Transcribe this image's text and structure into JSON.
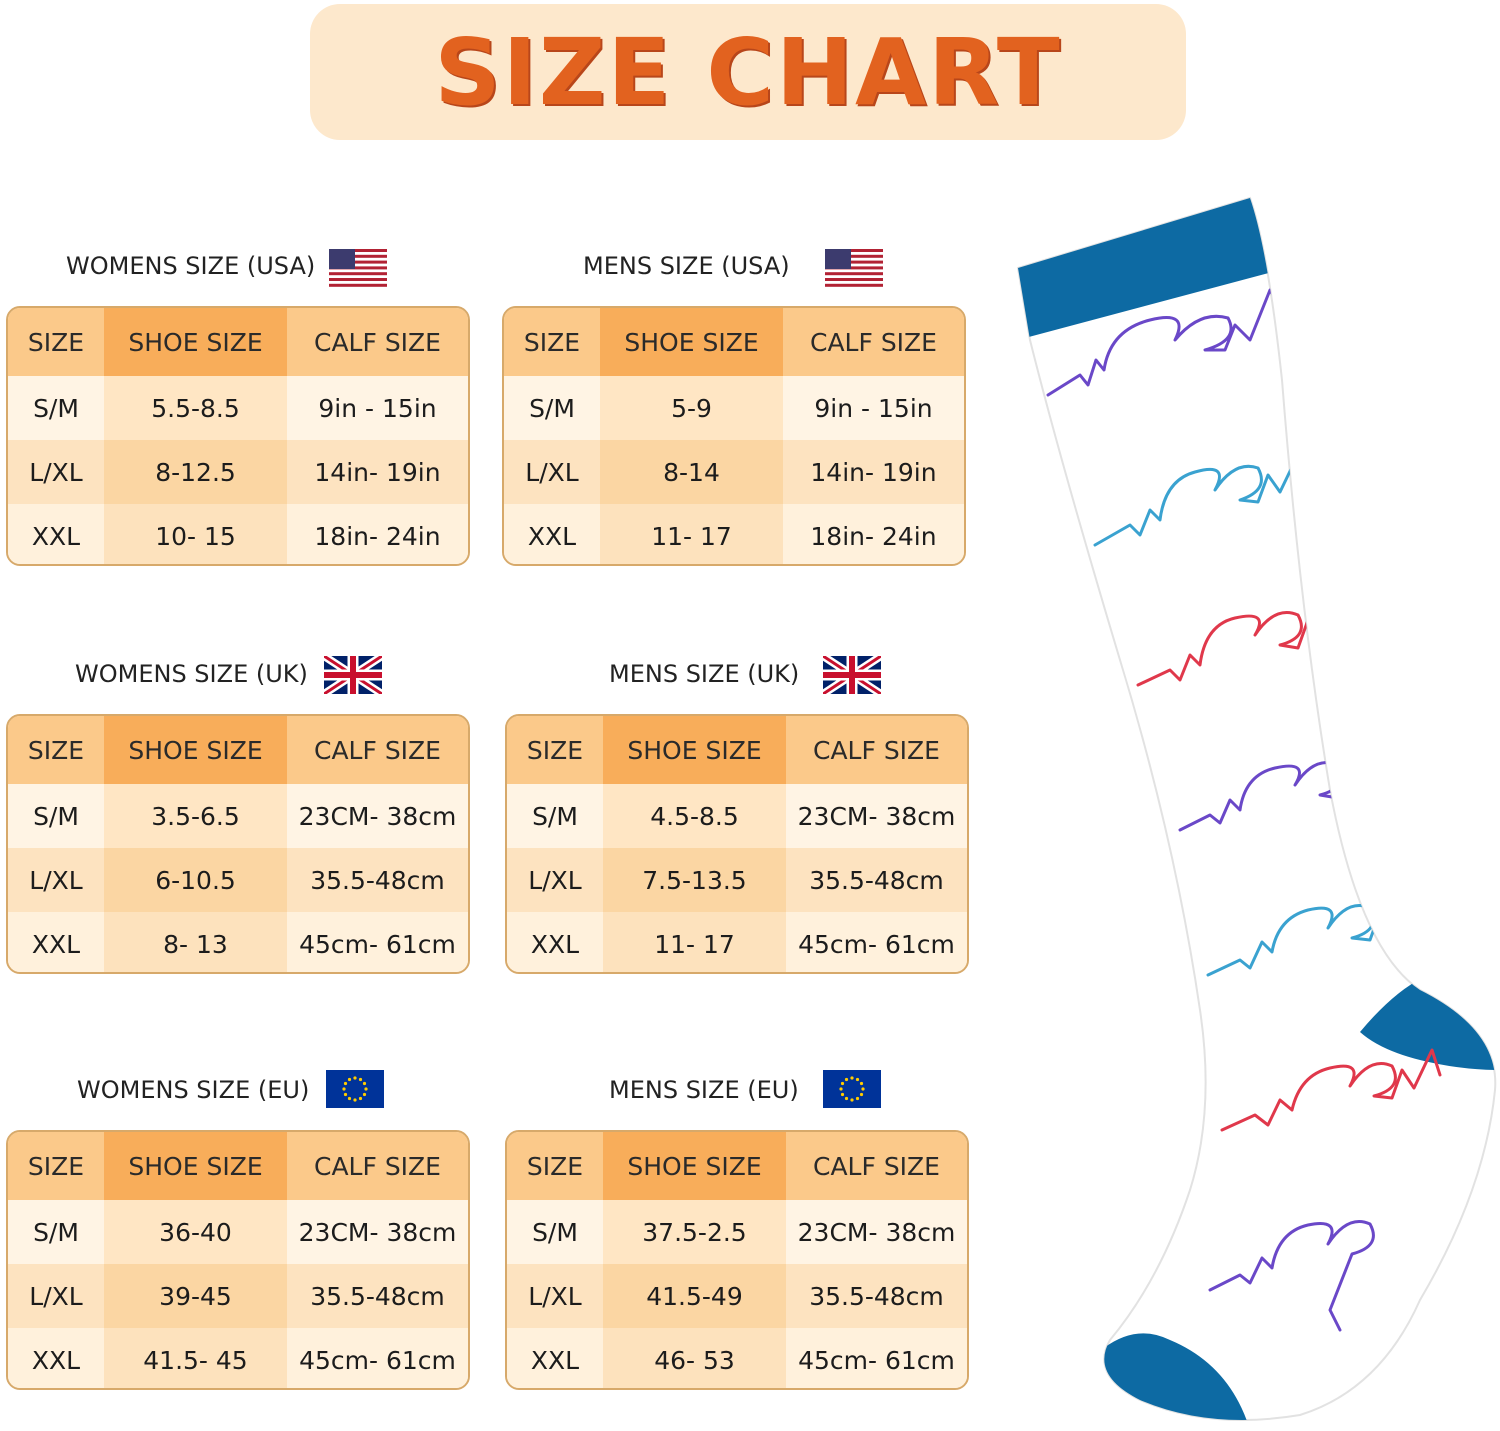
{
  "banner": {
    "title": "SIZE CHART"
  },
  "headers": [
    "SIZE",
    "SHOE SIZE",
    "CALF SIZE"
  ],
  "tables": [
    {
      "title": "WOMENS SIZE (USA)",
      "flag": "usa-flag-icon",
      "rows": [
        [
          "S/M",
          "5.5-8.5",
          "9in - 15in"
        ],
        [
          "L/XL",
          "8-12.5",
          "14in- 19in"
        ],
        [
          "XXL",
          "10- 15",
          "18in- 24in"
        ]
      ]
    },
    {
      "title": "MENS SIZE (USA)",
      "flag": "usa-flag-icon",
      "rows": [
        [
          "S/M",
          "5-9",
          "9in - 15in"
        ],
        [
          "L/XL",
          "8-14",
          "14in- 19in"
        ],
        [
          "XXL",
          "11- 17",
          "18in- 24in"
        ]
      ]
    },
    {
      "title": "WOMENS SIZE (UK)",
      "flag": "uk-flag-icon",
      "rows": [
        [
          "S/M",
          "3.5-6.5",
          "23CM- 38cm"
        ],
        [
          "L/XL",
          "6-10.5",
          "35.5-48cm"
        ],
        [
          "XXL",
          "8- 13",
          "45cm- 61cm"
        ]
      ]
    },
    {
      "title": "MENS SIZE (UK)",
      "flag": "uk-flag-icon",
      "rows": [
        [
          "S/M",
          "4.5-8.5",
          "23CM- 38cm"
        ],
        [
          "L/XL",
          "7.5-13.5",
          "35.5-48cm"
        ],
        [
          "XXL",
          "11- 17",
          "45cm- 61cm"
        ]
      ]
    },
    {
      "title": "WOMENS SIZE (EU)",
      "flag": "eu-flag-icon",
      "rows": [
        [
          "S/M",
          "36-40",
          "23CM- 38cm"
        ],
        [
          "L/XL",
          "39-45",
          "35.5-48cm"
        ],
        [
          "XXL",
          "41.5- 45",
          "45cm- 61cm"
        ]
      ]
    },
    {
      "title": "MENS SIZE (EU)",
      "flag": "eu-flag-icon",
      "rows": [
        [
          "S/M",
          "37.5-2.5",
          "23CM- 38cm"
        ],
        [
          "L/XL",
          "41.5-49",
          "35.5-48cm"
        ],
        [
          "XXL",
          "46- 53",
          "45cm- 61cm"
        ]
      ]
    }
  ],
  "product": {
    "icon": "compression-sock-icon"
  },
  "colors": {
    "accent": "#e2621f",
    "header": "#f8ad5a",
    "sock_band": "#0d6aa3"
  }
}
